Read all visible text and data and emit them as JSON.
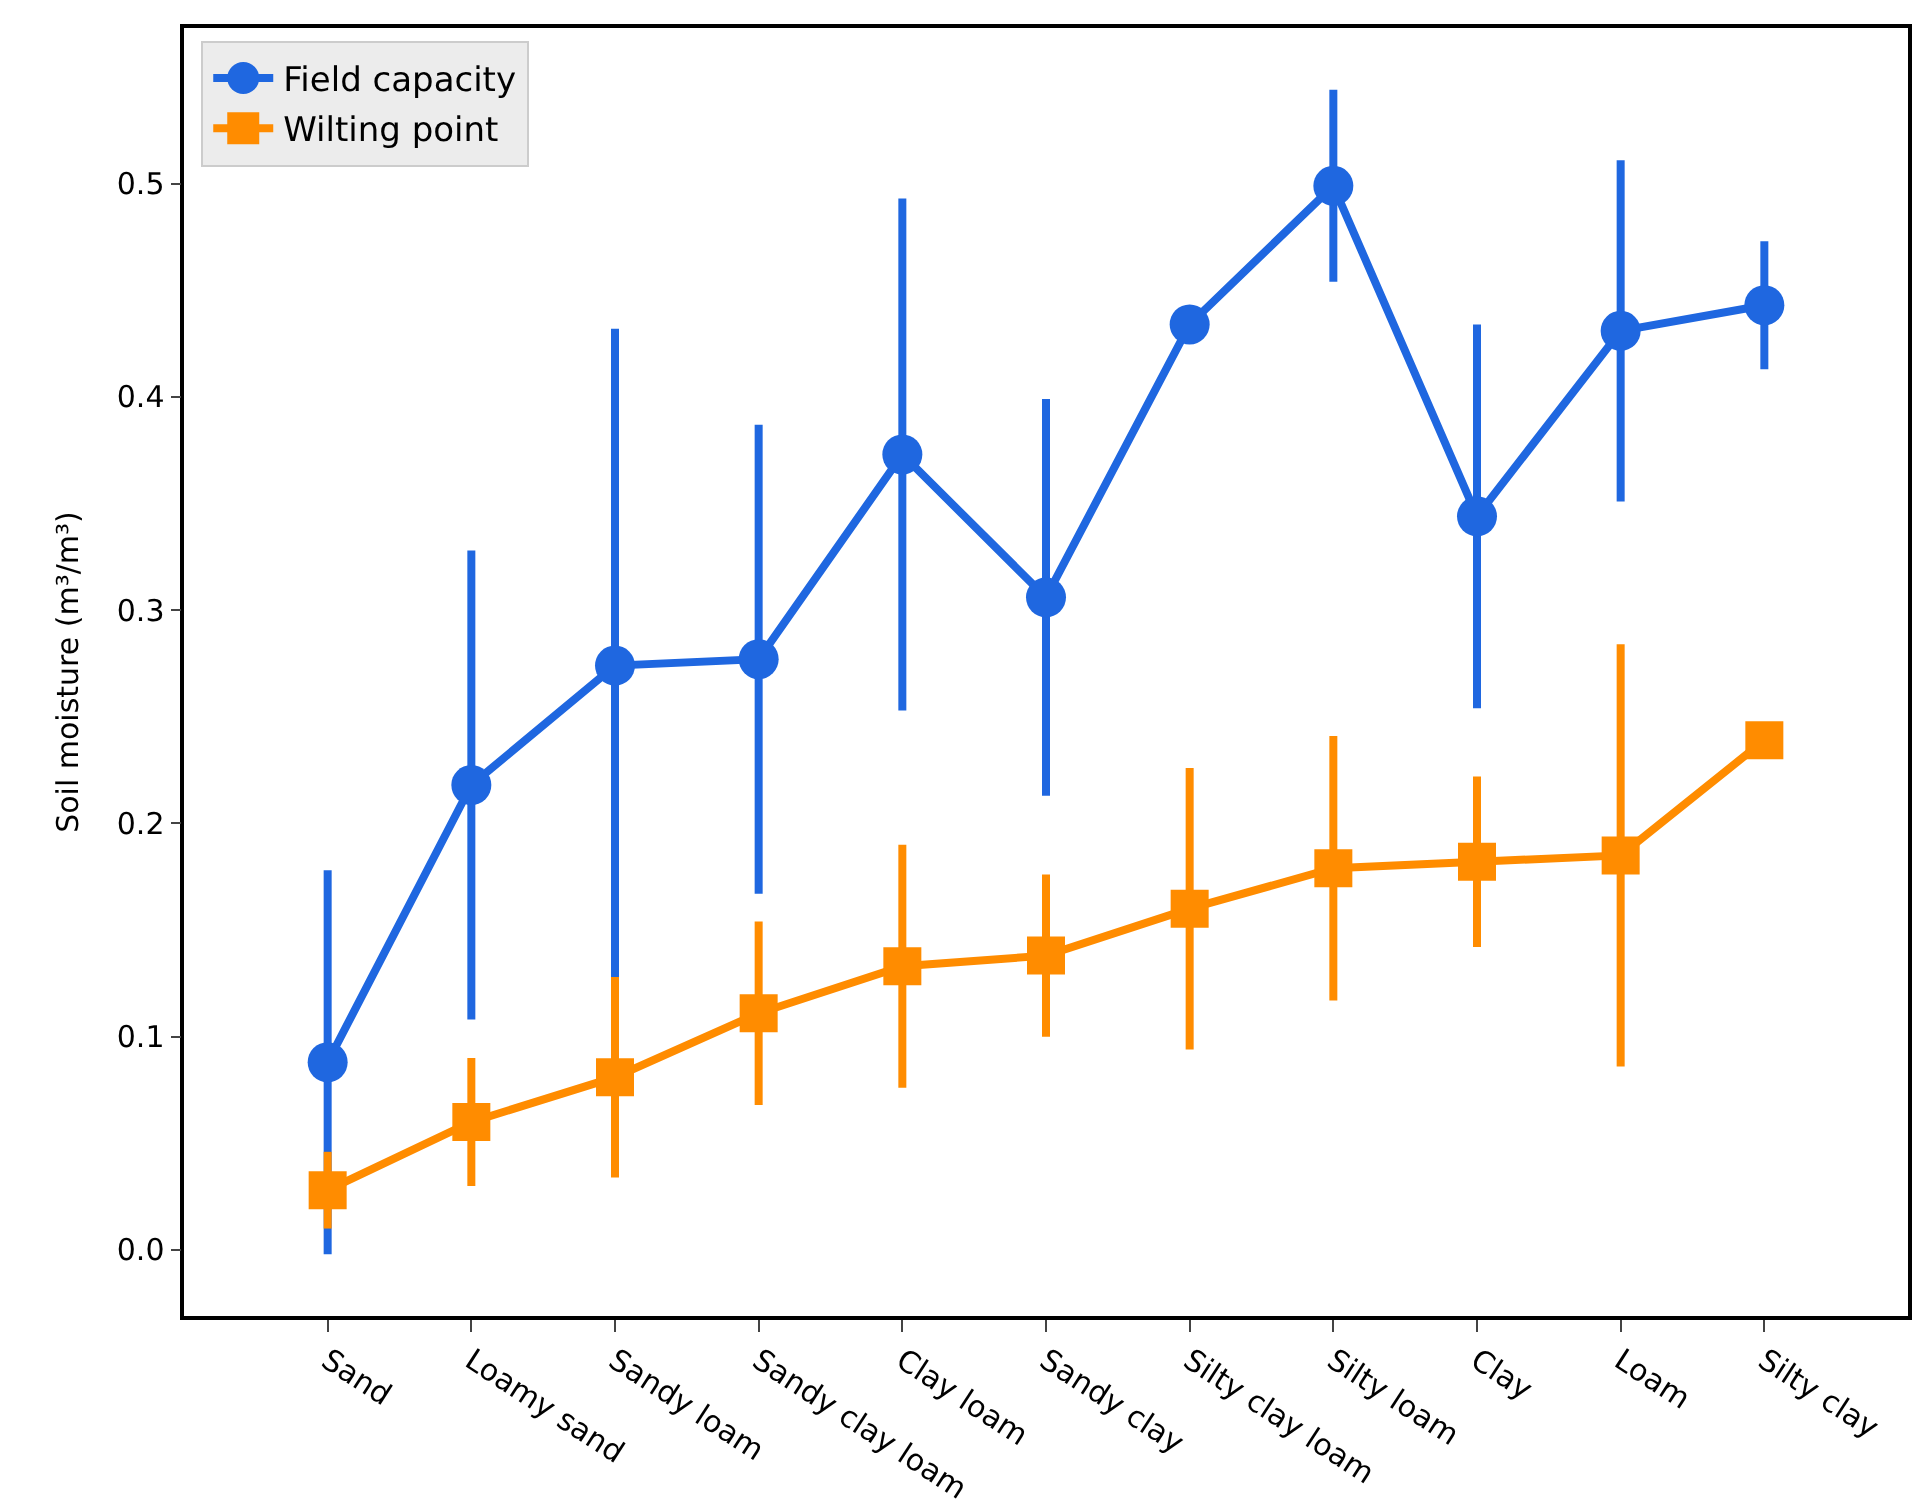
{
  "chart_data": {
    "type": "line",
    "ylabel": "Soil moisture (m³/m³)",
    "categories": [
      "Sand",
      "Loamy sand",
      "Sandy loam",
      "Sandy clay loam",
      "Clay loam",
      "Sandy clay",
      "Silty clay loam",
      "Silty loam",
      "Clay",
      "Loam",
      "Silty clay"
    ],
    "series": [
      {
        "name": "Field capacity",
        "color": "#1f67e0",
        "marker": "circle",
        "values": [
          0.088,
          0.218,
          0.274,
          0.277,
          0.373,
          0.306,
          0.434,
          0.499,
          0.344,
          0.431,
          0.443
        ],
        "errors": [
          0.09,
          0.11,
          0.158,
          0.11,
          0.12,
          0.093,
          null,
          0.045,
          0.09,
          0.08,
          0.03
        ]
      },
      {
        "name": "Wilting point",
        "color": "#ff8c00",
        "marker": "square",
        "values": [
          0.028,
          0.06,
          0.081,
          0.111,
          0.133,
          0.138,
          0.16,
          0.179,
          0.182,
          0.185,
          0.239
        ],
        "errors": [
          0.018,
          0.03,
          0.047,
          0.043,
          0.057,
          0.038,
          0.066,
          0.062,
          0.04,
          0.099,
          null
        ]
      }
    ],
    "ylim": [
      -0.031,
      0.573
    ],
    "yticks": [
      {
        "value": 0,
        "label": "0.0"
      },
      0.1,
      0.2,
      0.3,
      0.4,
      0.5
    ],
    "legend": "top left"
  }
}
